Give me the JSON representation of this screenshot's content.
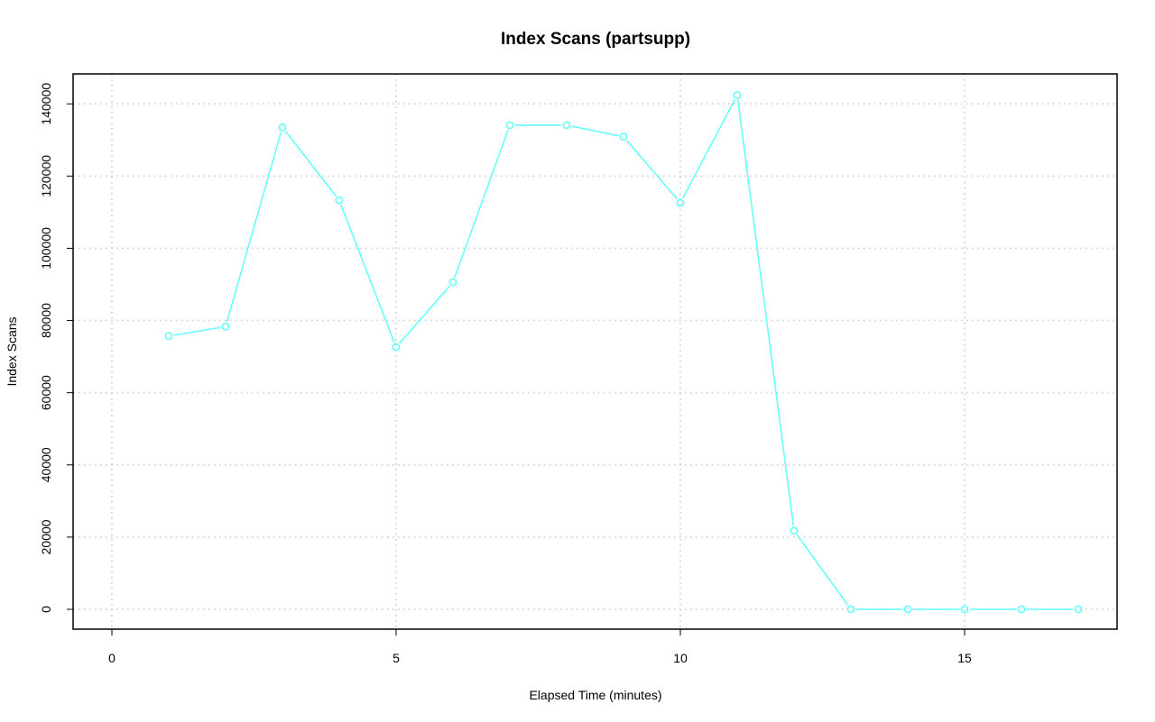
{
  "chart_data": {
    "type": "line",
    "title": "Index Scans (partsupp)",
    "xlabel": "Elapsed Time (minutes)",
    "ylabel": "Index Scans",
    "xlim": [
      0,
      17
    ],
    "ylim": [
      0,
      142500
    ],
    "x_ticks": [
      0,
      5,
      10,
      15
    ],
    "y_ticks": [
      0,
      20000,
      40000,
      60000,
      80000,
      100000,
      120000,
      140000
    ],
    "x_tick_labels": [
      "0",
      "5",
      "10",
      "15"
    ],
    "y_tick_labels": [
      "0",
      "20000",
      "40000",
      "60000",
      "80000",
      "100000",
      "120000",
      "140000"
    ],
    "grid": true,
    "series": [
      {
        "color": "#66ffff",
        "x": [
          1,
          2,
          3,
          4,
          5,
          6,
          7,
          8,
          9,
          10,
          11,
          12,
          13,
          14,
          15,
          16,
          17
        ],
        "values": [
          75700,
          78300,
          133500,
          113300,
          72600,
          90600,
          134100,
          134100,
          130900,
          112600,
          142400,
          21800,
          0,
          0,
          0,
          0,
          0
        ]
      }
    ]
  }
}
